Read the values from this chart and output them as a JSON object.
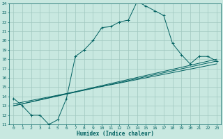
{
  "xlabel": "Humidex (Indice chaleur)",
  "xlim": [
    -0.5,
    23.5
  ],
  "ylim": [
    11,
    24
  ],
  "xticks": [
    0,
    1,
    2,
    3,
    4,
    5,
    6,
    7,
    8,
    9,
    10,
    11,
    12,
    13,
    14,
    15,
    16,
    17,
    18,
    19,
    20,
    21,
    22,
    23
  ],
  "yticks": [
    11,
    12,
    13,
    14,
    15,
    16,
    17,
    18,
    19,
    20,
    21,
    22,
    23,
    24
  ],
  "background_color": "#c8e8e0",
  "grid_color": "#a0c8c0",
  "line_color": "#006060",
  "main_line": {
    "x": [
      0,
      1,
      2,
      3,
      4,
      5,
      6,
      7,
      8,
      9,
      10,
      11,
      12,
      13,
      14,
      15,
      16,
      17,
      18,
      19,
      20,
      21,
      22,
      23
    ],
    "y": [
      13.8,
      13.0,
      12.0,
      12.0,
      11.0,
      11.5,
      13.8,
      18.3,
      19.0,
      20.0,
      21.4,
      21.5,
      22.0,
      22.2,
      24.2,
      23.7,
      23.2,
      22.7,
      19.7,
      18.5,
      17.5,
      18.3,
      18.3,
      17.8
    ]
  },
  "trend_lines": [
    {
      "x": [
        0,
        23
      ],
      "y": [
        13.0,
        17.8
      ]
    },
    {
      "x": [
        0,
        23
      ],
      "y": [
        13.0,
        18.0
      ]
    },
    {
      "x": [
        0,
        23
      ],
      "y": [
        13.2,
        17.5
      ]
    }
  ]
}
